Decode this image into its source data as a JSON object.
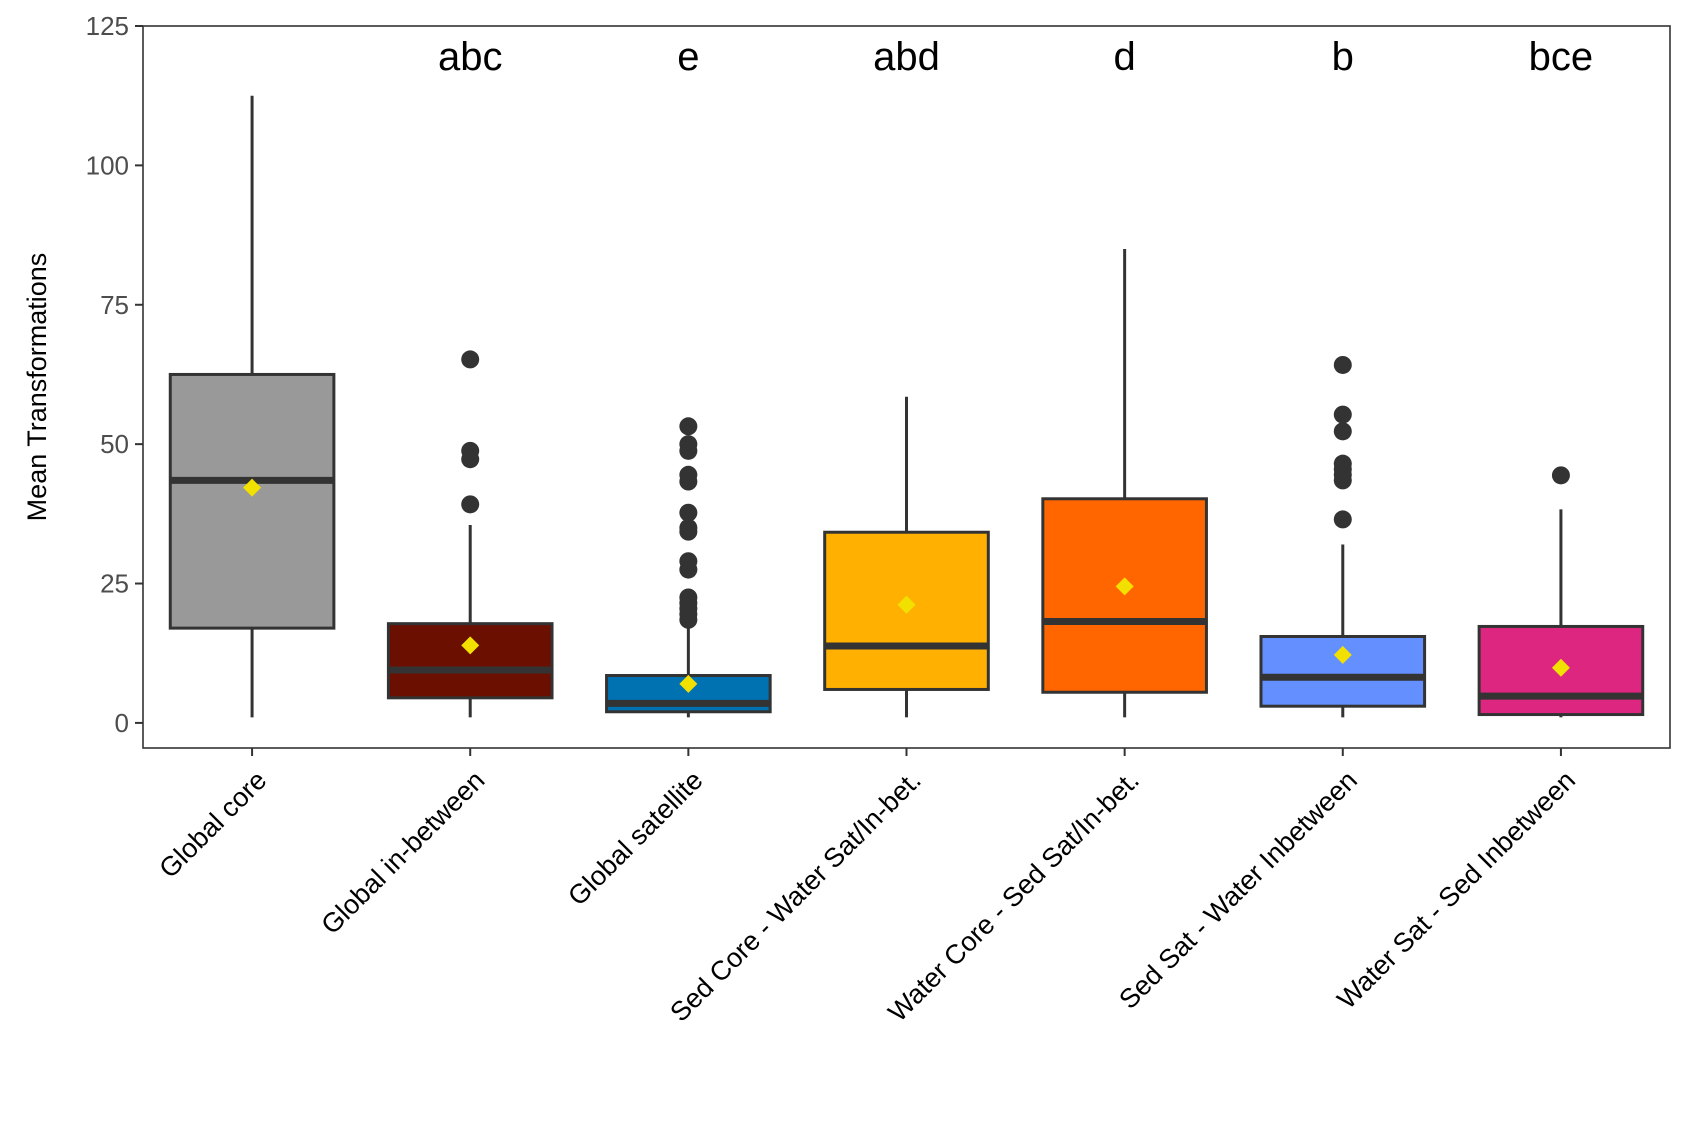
{
  "chart_data": {
    "type": "box",
    "title": "",
    "xlabel": "",
    "ylabel": "Mean Transformations",
    "ylim": [
      -4.5,
      125
    ],
    "yticks": [
      0,
      25,
      50,
      75,
      100,
      125
    ],
    "ytick_labels": [
      "0",
      "25",
      "50",
      "75",
      "100",
      "125"
    ],
    "grid": false,
    "legend": "none",
    "colors": {
      "box_outline": "#333333",
      "mean_marker": "#f2e000",
      "outlier": "#333333",
      "panel_border": "#333333"
    },
    "categories": [
      "Global core",
      "Global in-between",
      "Global satellite",
      "Sed Core - Water Sat/In-bet.",
      "Water Core - Sed Sat/In-bet.",
      "Sed Sat - Water Inbetween",
      "Water Sat - Sed Inbetween"
    ],
    "boxes": [
      {
        "category": "Global core",
        "fill": "#999999",
        "min": 1,
        "q1": 17,
        "median": 43.5,
        "q3": 62.5,
        "max": 112.5,
        "mean": 42.2,
        "outliers": [],
        "letter": ""
      },
      {
        "category": "Global in-between",
        "fill": "#6b0f00",
        "min": 1,
        "q1": 4.5,
        "median": 9.5,
        "q3": 17.8,
        "max": 35.5,
        "mean": 13.9,
        "outliers": [
          39.2,
          47.3,
          48.8,
          65.2
        ],
        "letter": "abc"
      },
      {
        "category": "Global satellite",
        "fill": "#0072b2",
        "min": 1,
        "q1": 2,
        "median": 3.5,
        "q3": 8.5,
        "max": 17.5,
        "mean": 7,
        "outliers": [
          18.5,
          19.5,
          20.5,
          21.5,
          22.5,
          27.5,
          29,
          34.3,
          35,
          37.7,
          43.3,
          44.5,
          48.8,
          50,
          53.2
        ],
        "letter": "e"
      },
      {
        "category": "Sed Core - Water Sat/In-bet.",
        "fill": "#ffb000",
        "min": 1,
        "q1": 6,
        "median": 13.8,
        "q3": 34.2,
        "max": 58.5,
        "mean": 21.2,
        "outliers": [],
        "letter": "abd"
      },
      {
        "category": "Water Core - Sed Sat/In-bet.",
        "fill": "#ff6600",
        "min": 1,
        "q1": 5.5,
        "median": 18.2,
        "q3": 40.2,
        "max": 85,
        "mean": 24.5,
        "outliers": [],
        "letter": "d"
      },
      {
        "category": "Sed Sat - Water Inbetween",
        "fill": "#648fff",
        "min": 1,
        "q1": 3,
        "median": 8.2,
        "q3": 15.5,
        "max": 32,
        "mean": 12.2,
        "outliers": [
          36.5,
          43.5,
          44.5,
          45.5,
          46.5,
          52.3,
          55.3,
          64.2
        ],
        "letter": "b"
      },
      {
        "category": "Water Sat - Sed Inbetween",
        "fill": "#dc267f",
        "min": 1,
        "q1": 1.5,
        "median": 4.8,
        "q3": 17.3,
        "max": 38.3,
        "mean": 9.9,
        "outliers": [
          44.4
        ],
        "letter": "bce"
      }
    ]
  }
}
